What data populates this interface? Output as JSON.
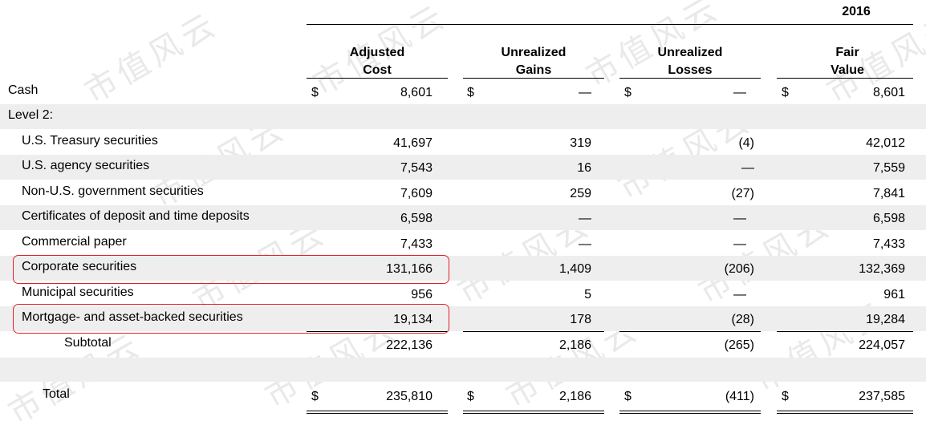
{
  "header": {
    "year": "2016",
    "columns": [
      {
        "line1": "Adjusted",
        "line2": "Cost"
      },
      {
        "line1": "Unrealized",
        "line2": "Gains"
      },
      {
        "line1": "Unrealized",
        "line2": "Losses"
      },
      {
        "line1": "Fair",
        "line2": "Value"
      }
    ]
  },
  "currency_symbol": "$",
  "watermark_text": "市值风云",
  "highlight_color": "#e0202a",
  "rows": [
    {
      "label": "Cash",
      "cost": "8,601",
      "gains": "—",
      "losses": "—",
      "fair": "8,601"
    },
    {
      "label": "Level 2:",
      "cost": "",
      "gains": "",
      "losses": "",
      "fair": ""
    },
    {
      "label": "U.S. Treasury securities",
      "cost": "41,697",
      "gains": "319",
      "losses": "(4)",
      "fair": "42,012"
    },
    {
      "label": "U.S. agency securities",
      "cost": "7,543",
      "gains": "16",
      "losses": "—",
      "fair": "7,559"
    },
    {
      "label": "Non-U.S. government securities",
      "cost": "7,609",
      "gains": "259",
      "losses": "(27)",
      "fair": "7,841"
    },
    {
      "label": "Certificates of deposit and time deposits",
      "cost": "6,598",
      "gains": "—",
      "losses": "—",
      "fair": "6,598"
    },
    {
      "label": "Commercial paper",
      "cost": "7,433",
      "gains": "—",
      "losses": "—",
      "fair": "7,433"
    },
    {
      "label": "Corporate securities",
      "cost": "131,166",
      "gains": "1,409",
      "losses": "(206)",
      "fair": "132,369"
    },
    {
      "label": "Municipal securities",
      "cost": "956",
      "gains": "5",
      "losses": "—",
      "fair": "961"
    },
    {
      "label": "Mortgage- and asset-backed securities",
      "cost": "19,134",
      "gains": "178",
      "losses": "(28)",
      "fair": "19,284"
    },
    {
      "label": "Subtotal",
      "cost": "222,136",
      "gains": "2,186",
      "losses": "(265)",
      "fair": "224,057"
    },
    {
      "label": "",
      "cost": "",
      "gains": "",
      "losses": "",
      "fair": ""
    },
    {
      "label": "Total",
      "cost": "235,810",
      "gains": "2,186",
      "losses": "(411)",
      "fair": "237,585"
    }
  ]
}
